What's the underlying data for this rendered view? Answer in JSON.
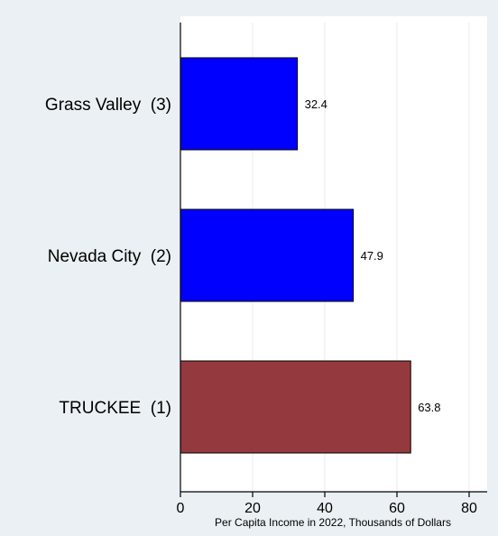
{
  "chart_data": {
    "type": "bar",
    "orientation": "horizontal",
    "title": "",
    "xlabel": "Per Capita Income in 2022, Thousands of Dollars",
    "ylabel": "",
    "xlim": [
      0,
      85
    ],
    "xticks": [
      0,
      20,
      40,
      60,
      80
    ],
    "grid": true,
    "categories": [
      "Grass Valley  (3)",
      "Nevada City  (2)",
      "TRUCKEE  (1)"
    ],
    "values": [
      32.4,
      47.9,
      63.8
    ],
    "value_labels": [
      "32.4",
      "47.9",
      "63.8"
    ],
    "bar_colors": [
      "#0000ff",
      "#0000ff",
      "#943a3e"
    ],
    "background_color": "#eaf0f3",
    "plot_color": "#ffffff"
  }
}
